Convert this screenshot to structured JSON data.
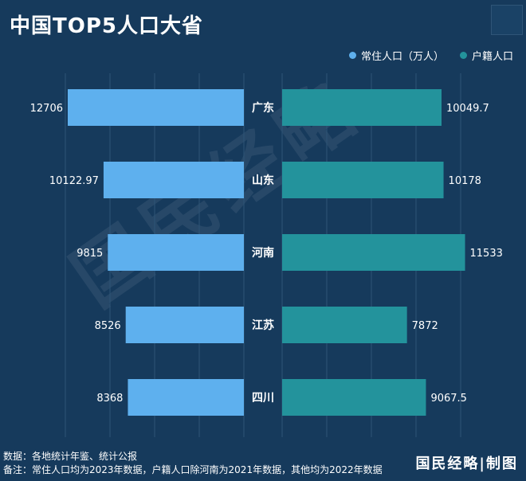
{
  "title": "中国TOP5人口大省",
  "legend": {
    "items": [
      {
        "label": "常住人口（万人）",
        "color": "#5eb0ee"
      },
      {
        "label": "户籍人口",
        "color": "#23939c"
      }
    ]
  },
  "chart_data": {
    "type": "bar",
    "orientation": "horizontal-butterfly",
    "categories": [
      "广东",
      "山东",
      "河南",
      "江苏",
      "四川"
    ],
    "series": [
      {
        "name": "常住人口（万人）",
        "values": [
          12706,
          10122.97,
          9815,
          8526,
          8368
        ],
        "labels": [
          "12706",
          "10122.97",
          "9815",
          "8526",
          "8368"
        ],
        "color": "#5eb0ee"
      },
      {
        "name": "户籍人口",
        "values": [
          10049.7,
          10178,
          11533,
          7872,
          9067.5
        ],
        "labels": [
          "10049.7",
          "10178",
          "11533",
          "7872",
          "9067.5"
        ],
        "color": "#23939c"
      }
    ],
    "grid": true,
    "legend_position": "top-right"
  },
  "watermark": "国民经略",
  "footer": {
    "source": "数据：各地统计年鉴、统计公报",
    "note": "备注：常住人口均为2023年数据，户籍人口除河南为2021年数据，其他均为2022年数据"
  },
  "brand": "国民经略|制图",
  "colors": {
    "background": "#163a5c",
    "grid": "#2e5476"
  }
}
